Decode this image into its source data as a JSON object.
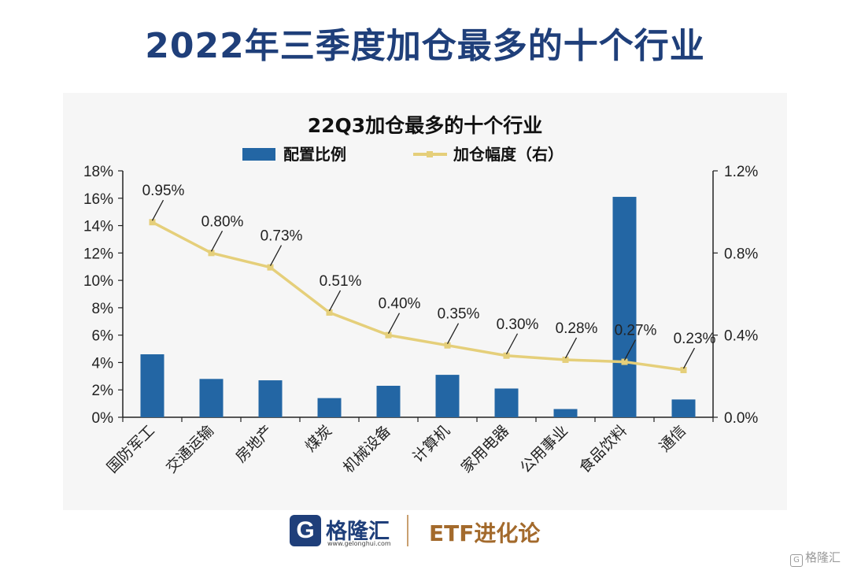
{
  "page": {
    "title": "2022年三季度加仓最多的十个行业"
  },
  "chart_data": {
    "type": "bar",
    "title": "22Q3加仓最多的十个行业",
    "categories": [
      "国防军工",
      "交通运输",
      "房地产",
      "煤炭",
      "机械设备",
      "计算机",
      "家用电器",
      "公用事业",
      "食品饮料",
      "通信"
    ],
    "series": [
      {
        "name": "配置比例",
        "type": "bar",
        "axis": "left",
        "values": [
          4.6,
          2.8,
          2.7,
          1.4,
          2.3,
          3.1,
          2.1,
          0.6,
          16.1,
          1.3
        ]
      },
      {
        "name": "加仓幅度（右）",
        "type": "line",
        "axis": "right",
        "values": [
          0.95,
          0.8,
          0.73,
          0.51,
          0.4,
          0.35,
          0.3,
          0.28,
          0.27,
          0.23
        ],
        "labels": [
          "0.95%",
          "0.80%",
          "0.73%",
          "0.51%",
          "0.40%",
          "0.35%",
          "0.30%",
          "0.28%",
          "0.27%",
          "0.23%"
        ]
      }
    ],
    "y_left": {
      "range": [
        0,
        18
      ],
      "ticks": [
        "0%",
        "2%",
        "4%",
        "6%",
        "8%",
        "10%",
        "12%",
        "14%",
        "16%",
        "18%"
      ]
    },
    "y_right": {
      "range": [
        0,
        1.2
      ],
      "ticks": [
        "0.0%",
        "0.4%",
        "0.8%",
        "1.2%"
      ]
    },
    "legend_position": "top",
    "grid": false,
    "colors": {
      "bar": "#2366a4",
      "line": "#e5cf7a",
      "title": "#1f3f7a"
    }
  },
  "footer": {
    "logo_glyph": "G",
    "logo_name": "格隆汇",
    "logo_url": "www.gelonghui.com",
    "brand": "ETF进化论"
  },
  "watermark": {
    "glyph": "G",
    "text": "格隆汇"
  }
}
